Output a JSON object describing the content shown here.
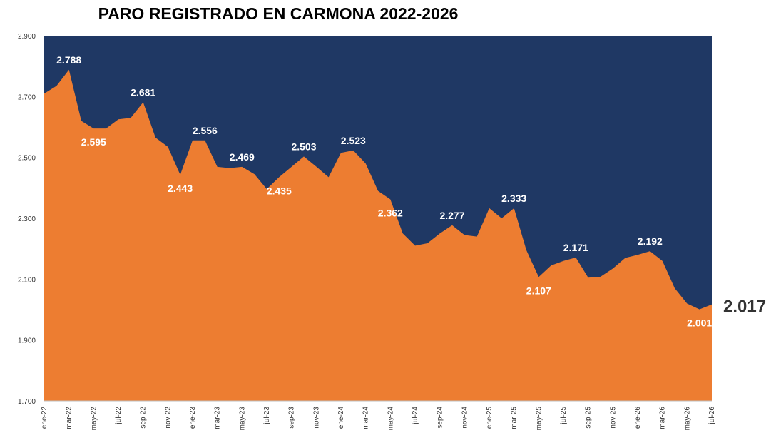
{
  "chart_data": {
    "type": "area",
    "title": "PARO REGISTRADO EN CARMONA 2022-2026",
    "xlabel": "",
    "ylabel": "",
    "ylim": [
      1700,
      2900
    ],
    "y_ticks": [
      "1.700",
      "1.900",
      "2.100",
      "2.300",
      "2.500",
      "2.700",
      "2.900"
    ],
    "y_tick_values": [
      1700,
      1900,
      2100,
      2300,
      2500,
      2700,
      2900
    ],
    "x_tick_labels": [
      "ene-22",
      "mar-22",
      "may-22",
      "jul-22",
      "sep-22",
      "nov-22",
      "ene-23",
      "mar-23",
      "may-23",
      "jul-23",
      "sep-23",
      "nov-23",
      "ene-24",
      "mar-24",
      "may-24",
      "jul-24",
      "sep-24",
      "nov-24",
      "ene-25",
      "mar-25",
      "may-25",
      "jul-25",
      "sep-25",
      "nov-25",
      "ene-26",
      "mar-26",
      "may-26",
      "jul-26"
    ],
    "categories": [
      "ene-22",
      "feb-22",
      "mar-22",
      "abr-22",
      "may-22",
      "jun-22",
      "jul-22",
      "ago-22",
      "sep-22",
      "oct-22",
      "nov-22",
      "dic-22",
      "ene-23",
      "feb-23",
      "mar-23",
      "abr-23",
      "may-23",
      "jun-23",
      "jul-23",
      "ago-23",
      "sep-23",
      "oct-23",
      "nov-23",
      "dic-23",
      "ene-24",
      "feb-24",
      "mar-24",
      "abr-24",
      "may-24",
      "jun-24",
      "jul-24",
      "ago-24",
      "sep-24",
      "oct-24",
      "nov-24",
      "dic-24",
      "ene-25",
      "feb-25",
      "mar-25",
      "abr-25",
      "may-25",
      "jun-25",
      "jul-25",
      "ago-25",
      "sep-25",
      "oct-25",
      "nov-25",
      "dic-25",
      "ene-26",
      "feb-26",
      "mar-26",
      "abr-26",
      "may-26",
      "jun-26",
      "jul-26"
    ],
    "values": [
      2710,
      2735,
      2788,
      2620,
      2595,
      2595,
      2625,
      2630,
      2681,
      2565,
      2535,
      2443,
      2556,
      2556,
      2469,
      2465,
      2469,
      2445,
      2396,
      2435,
      2469,
      2503,
      2470,
      2435,
      2515,
      2523,
      2480,
      2390,
      2362,
      2250,
      2210,
      2218,
      2250,
      2277,
      2245,
      2240,
      2333,
      2300,
      2333,
      2195,
      2107,
      2145,
      2160,
      2171,
      2105,
      2108,
      2135,
      2170,
      2180,
      2192,
      2160,
      2070,
      2020,
      2001,
      2017
    ],
    "data_labels": [
      {
        "category": "mar-22",
        "text": "2.788",
        "color": "#ffffff"
      },
      {
        "category": "may-22",
        "text": "2.595",
        "color": "#ffffff"
      },
      {
        "category": "sep-22",
        "text": "2.681",
        "color": "#ffffff"
      },
      {
        "category": "dic-22",
        "text": "2.443",
        "color": "#ffffff"
      },
      {
        "category": "feb-23",
        "text": "2.556",
        "color": "#ffffff"
      },
      {
        "category": "may-23",
        "text": "2.469",
        "color": "#ffffff"
      },
      {
        "category": "ago-23",
        "text": "2.435",
        "color": "#ffffff"
      },
      {
        "category": "oct-23",
        "text": "2.503",
        "color": "#ffffff"
      },
      {
        "category": "feb-24",
        "text": "2.523",
        "color": "#ffffff"
      },
      {
        "category": "may-24",
        "text": "2.362",
        "color": "#ffffff"
      },
      {
        "category": "oct-24",
        "text": "2.277",
        "color": "#ffffff"
      },
      {
        "category": "mar-25",
        "text": "2.333",
        "color": "#ffffff"
      },
      {
        "category": "may-25",
        "text": "2.107",
        "color": "#ffffff"
      },
      {
        "category": "ago-25",
        "text": "2.171",
        "color": "#ffffff"
      },
      {
        "category": "feb-26",
        "text": "2.192",
        "color": "#ffffff"
      },
      {
        "category": "jun-26",
        "text": "2.001",
        "color": "#ffffff"
      },
      {
        "category": "jul-26",
        "text": "2.017",
        "color": "#333333"
      }
    ],
    "colors": {
      "area": "#ed7d31",
      "plot_background": "#1f3864"
    },
    "grid": false,
    "legend": "none"
  }
}
